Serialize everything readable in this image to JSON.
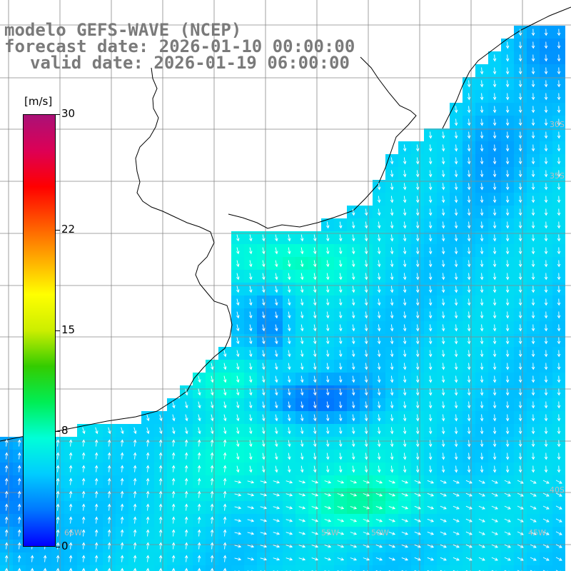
{
  "title": {
    "line1": "modelo GEFS-WAVE (NCEP)",
    "line2": "forecast date: 2026-01-10 00:00:00",
    "line3": "valid date: 2026-01-19 06:00:00"
  },
  "colorbar": {
    "unit": "[m/s]",
    "min": 0,
    "max": 30,
    "tick_labels": [
      "30",
      "22",
      "15",
      "8",
      "0"
    ],
    "tick_values": [
      30,
      22,
      15,
      8,
      0
    ],
    "colors": [
      "#0000ff",
      "#0077ff",
      "#00ccff",
      "#00ffd8",
      "#00ee55",
      "#33cc00",
      "#ccee00",
      "#ffff00",
      "#ffaa00",
      "#ff5500",
      "#ff0000",
      "#dd0055",
      "#aa1177"
    ]
  },
  "map": {
    "background_color": "#ffffff",
    "grid_color": "#888888",
    "coast_color": "#000000",
    "arrow_color": "#ffffff",
    "lon_labels": [
      "65W",
      "55W",
      "50W",
      "45W"
    ],
    "lat_labels": [
      "30S",
      "35S",
      "40S"
    ]
  }
}
